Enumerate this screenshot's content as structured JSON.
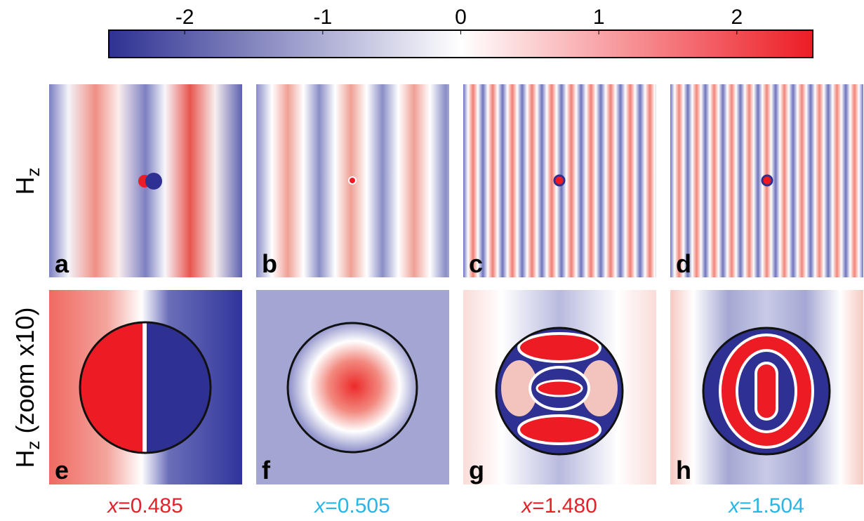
{
  "colorbar": {
    "lim": [
      -2.55,
      2.55
    ],
    "ticks": [
      -2,
      -1,
      0,
      1,
      2
    ],
    "colors": [
      "#2e3192",
      "#ffffff",
      "#ed1c24"
    ]
  },
  "row_labels": [
    {
      "symbol": "H",
      "subscript": "z"
    },
    {
      "symbol": "H",
      "subscript": "z",
      "suffix": "(zoom x10)"
    }
  ],
  "panels": [
    {
      "letter": "a"
    },
    {
      "letter": "b"
    },
    {
      "letter": "c"
    },
    {
      "letter": "d"
    },
    {
      "letter": "e"
    },
    {
      "letter": "f"
    },
    {
      "letter": "g"
    },
    {
      "letter": "h"
    }
  ],
  "captions": [
    {
      "variable": "x",
      "text": "=0.485",
      "color": "#e8202a"
    },
    {
      "variable": "x",
      "text": "=0.505",
      "color": "#29b6e6"
    },
    {
      "variable": "x",
      "text": "=1.480",
      "color": "#e8202a"
    },
    {
      "variable": "x",
      "text": "=1.504",
      "color": "#29b6e6"
    }
  ]
}
